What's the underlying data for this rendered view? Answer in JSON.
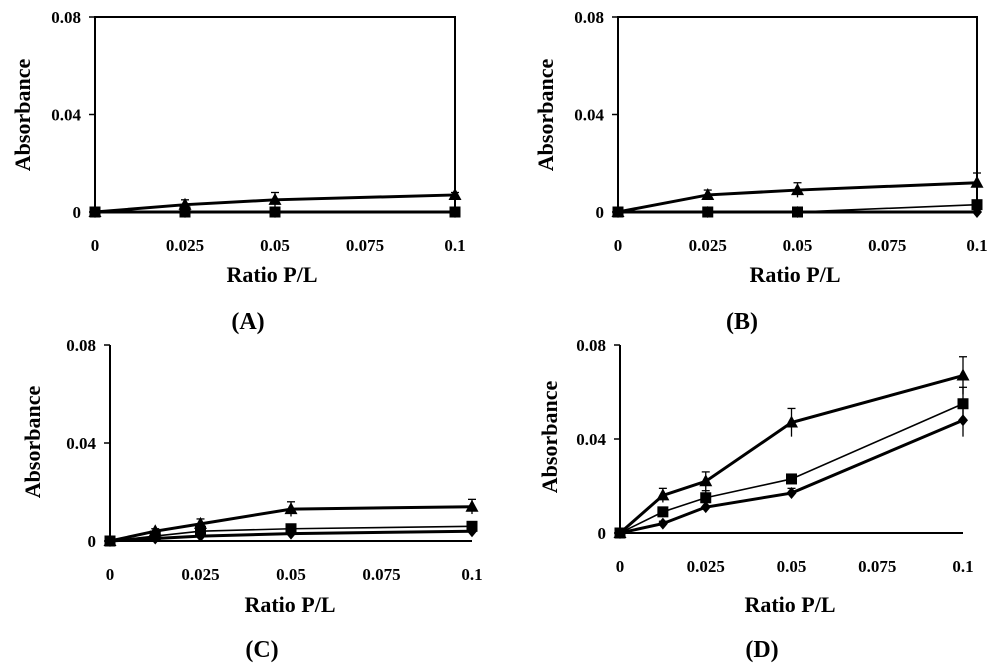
{
  "chart_data": [
    {
      "type": "line",
      "panel_label": "(A)",
      "xlabel": "Ratio P/L",
      "ylabel": "Absorbance",
      "xlim": [
        0,
        0.1
      ],
      "ylim": [
        0,
        0.08
      ],
      "x_ticks": [
        "0",
        "0.025",
        "0.05",
        "0.075",
        "0.1"
      ],
      "y_ticks": [
        "0",
        "0.04",
        "0.08"
      ],
      "series": [
        {
          "name": "triangle",
          "marker": "triangle",
          "bold": true,
          "x": [
            0,
            0.025,
            0.05,
            0.1
          ],
          "y": [
            0,
            0.003,
            0.005,
            0.007
          ],
          "err": [
            0,
            0.002,
            0.003,
            0.001
          ]
        },
        {
          "name": "square",
          "marker": "square",
          "bold": false,
          "x": [
            0,
            0.025,
            0.05,
            0.1
          ],
          "y": [
            0,
            0,
            0,
            0
          ],
          "err": [
            0,
            0,
            0,
            0
          ]
        },
        {
          "name": "diamond",
          "marker": "diamond",
          "bold": true,
          "x": [
            0,
            0.025,
            0.05,
            0.1
          ],
          "y": [
            0,
            0,
            0,
            0
          ],
          "err": [
            0,
            0,
            0,
            0
          ]
        }
      ]
    },
    {
      "type": "line",
      "panel_label": "(B)",
      "xlabel": "Ratio P/L",
      "ylabel": "Absorbance",
      "xlim": [
        0,
        0.1
      ],
      "ylim": [
        0,
        0.08
      ],
      "x_ticks": [
        "0",
        "0.025",
        "0.05",
        "0.075",
        "0.1"
      ],
      "y_ticks": [
        "0",
        "0.04",
        "0.08"
      ],
      "series": [
        {
          "name": "triangle",
          "marker": "triangle",
          "bold": true,
          "x": [
            0,
            0.025,
            0.05,
            0.1
          ],
          "y": [
            0,
            0.007,
            0.009,
            0.012
          ],
          "err": [
            0,
            0.002,
            0.003,
            0.004
          ]
        },
        {
          "name": "square",
          "marker": "square",
          "bold": false,
          "x": [
            0,
            0.025,
            0.05,
            0.1
          ],
          "y": [
            0,
            0,
            0,
            0.003
          ],
          "err": [
            0,
            0,
            0,
            0.001
          ]
        },
        {
          "name": "diamond",
          "marker": "diamond",
          "bold": true,
          "x": [
            0,
            0.025,
            0.05,
            0.1
          ],
          "y": [
            0,
            0,
            0,
            0
          ],
          "err": [
            0,
            0,
            0,
            0
          ]
        }
      ]
    },
    {
      "type": "line",
      "panel_label": "(C)",
      "xlabel": "Ratio P/L",
      "ylabel": "Absorbance",
      "xlim": [
        0,
        0.1
      ],
      "ylim": [
        0,
        0.08
      ],
      "x_ticks": [
        "0",
        "0.025",
        "0.05",
        "0.075",
        "0.1"
      ],
      "y_ticks": [
        "0",
        "0.04",
        "0.08"
      ],
      "series": [
        {
          "name": "triangle",
          "marker": "triangle",
          "bold": true,
          "x": [
            0,
            0.0125,
            0.025,
            0.05,
            0.1
          ],
          "y": [
            0,
            0.004,
            0.007,
            0.013,
            0.014
          ],
          "err": [
            0,
            0.001,
            0.002,
            0.003,
            0.003
          ]
        },
        {
          "name": "square",
          "marker": "square",
          "bold": false,
          "x": [
            0,
            0.0125,
            0.025,
            0.05,
            0.1
          ],
          "y": [
            0,
            0.002,
            0.004,
            0.005,
            0.006
          ],
          "err": [
            0,
            0.001,
            0.001,
            0.001,
            0.001
          ]
        },
        {
          "name": "diamond",
          "marker": "diamond",
          "bold": true,
          "x": [
            0,
            0.0125,
            0.025,
            0.05,
            0.1
          ],
          "y": [
            0,
            0.001,
            0.002,
            0.003,
            0.004
          ],
          "err": [
            0,
            0,
            0.001,
            0.001,
            0.001
          ]
        }
      ]
    },
    {
      "type": "line",
      "panel_label": "(D)",
      "xlabel": "Ratio P/L",
      "ylabel": "Absorbance",
      "xlim": [
        0,
        0.1
      ],
      "ylim": [
        0,
        0.08
      ],
      "x_ticks": [
        "0",
        "0.025",
        "0.05",
        "0.075",
        "0.1"
      ],
      "y_ticks": [
        "0",
        "0.04",
        "0.08"
      ],
      "series": [
        {
          "name": "triangle",
          "marker": "triangle",
          "bold": true,
          "x": [
            0,
            0.0125,
            0.025,
            0.05,
            0.1
          ],
          "y": [
            0,
            0.016,
            0.022,
            0.047,
            0.067
          ],
          "err": [
            0,
            0.003,
            0.004,
            0.006,
            0.008
          ]
        },
        {
          "name": "square",
          "marker": "square",
          "bold": false,
          "x": [
            0,
            0.0125,
            0.025,
            0.05,
            0.1
          ],
          "y": [
            0,
            0.009,
            0.015,
            0.023,
            0.055
          ],
          "err": [
            0,
            0.002,
            0.003,
            0.002,
            0.007
          ]
        },
        {
          "name": "diamond",
          "marker": "diamond",
          "bold": true,
          "x": [
            0,
            0.0125,
            0.025,
            0.05,
            0.1
          ],
          "y": [
            0,
            0.004,
            0.011,
            0.017,
            0.048
          ],
          "err": [
            0,
            0.001,
            0.002,
            0.002,
            0.007
          ]
        }
      ]
    }
  ]
}
